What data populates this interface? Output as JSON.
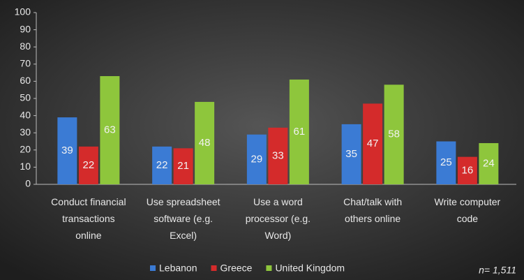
{
  "chart_data": {
    "type": "bar",
    "categories": [
      "Conduct financial\ntransactions\nonline",
      "Use spreadsheet\nsoftware (e.g.\nExcel)",
      "Use a word\nprocessor (e.g.\nWord)",
      "Chat/talk with\nothers online",
      "Write computer\ncode"
    ],
    "series": [
      {
        "name": "Lebanon",
        "color": "#3b7bd4",
        "values": [
          39,
          22,
          29,
          35,
          25
        ]
      },
      {
        "name": "Greece",
        "color": "#d42b2b",
        "values": [
          22,
          21,
          33,
          47,
          16
        ]
      },
      {
        "name": "United Kingdom",
        "color": "#8ec63c",
        "values": [
          63,
          48,
          61,
          58,
          24
        ]
      }
    ],
    "ylim": [
      0,
      100
    ],
    "yticks": [
      0,
      10,
      20,
      30,
      40,
      50,
      60,
      70,
      80,
      90,
      100
    ],
    "legend": "bottom",
    "annotation": "n= 1,511"
  }
}
